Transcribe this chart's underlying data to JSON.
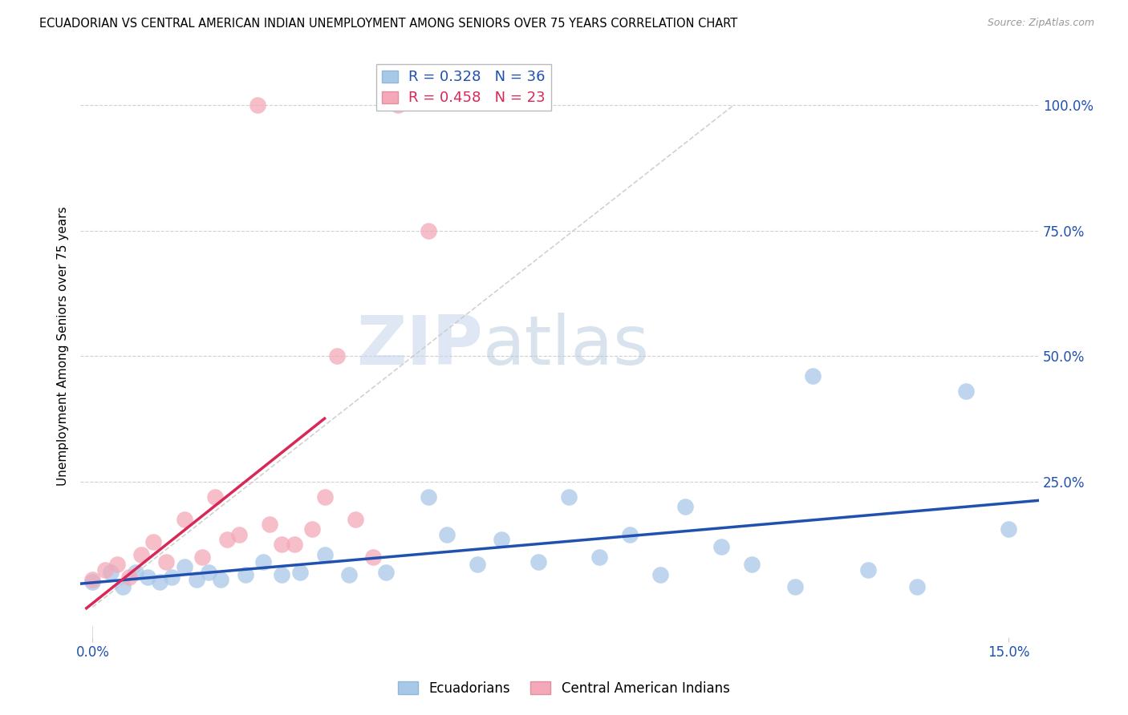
{
  "title": "ECUADORIAN VS CENTRAL AMERICAN INDIAN UNEMPLOYMENT AMONG SENIORS OVER 75 YEARS CORRELATION CHART",
  "source": "Source: ZipAtlas.com",
  "ylabel": "Unemployment Among Seniors over 75 years",
  "right_yticks": [
    "100.0%",
    "75.0%",
    "50.0%",
    "25.0%"
  ],
  "right_ytick_vals": [
    1.0,
    0.75,
    0.5,
    0.25
  ],
  "xmin": -0.002,
  "xmax": 0.155,
  "ymin": -0.06,
  "ymax": 1.1,
  "blue_color": "#a8c8e8",
  "pink_color": "#f4a8b8",
  "blue_line_color": "#2050b0",
  "pink_line_color": "#d82858",
  "diag_line_color": "#cccccc",
  "watermark_zip": "ZIP",
  "watermark_atlas": "atlas",
  "blue_R": 0.328,
  "blue_N": 36,
  "pink_R": 0.458,
  "pink_N": 23,
  "blue_points_x": [
    0.0,
    0.003,
    0.005,
    0.007,
    0.009,
    0.011,
    0.013,
    0.015,
    0.017,
    0.019,
    0.021,
    0.025,
    0.028,
    0.031,
    0.034,
    0.038,
    0.042,
    0.048,
    0.055,
    0.058,
    0.063,
    0.067,
    0.073,
    0.078,
    0.083,
    0.088,
    0.093,
    0.097,
    0.103,
    0.108,
    0.115,
    0.118,
    0.127,
    0.135,
    0.143,
    0.15
  ],
  "blue_points_y": [
    0.05,
    0.07,
    0.04,
    0.07,
    0.06,
    0.05,
    0.06,
    0.08,
    0.055,
    0.07,
    0.055,
    0.065,
    0.09,
    0.065,
    0.07,
    0.105,
    0.065,
    0.07,
    0.22,
    0.145,
    0.085,
    0.135,
    0.09,
    0.22,
    0.1,
    0.145,
    0.065,
    0.2,
    0.12,
    0.085,
    0.04,
    0.46,
    0.075,
    0.04,
    0.43,
    0.155
  ],
  "pink_points_x": [
    0.0,
    0.002,
    0.004,
    0.006,
    0.008,
    0.01,
    0.012,
    0.015,
    0.018,
    0.02,
    0.022,
    0.024,
    0.027,
    0.029,
    0.031,
    0.033,
    0.036,
    0.038,
    0.04,
    0.043,
    0.046,
    0.05,
    0.055
  ],
  "pink_points_y": [
    0.055,
    0.075,
    0.085,
    0.06,
    0.105,
    0.13,
    0.09,
    0.175,
    0.1,
    0.22,
    0.135,
    0.145,
    1.0,
    0.165,
    0.125,
    0.125,
    0.155,
    0.22,
    0.5,
    0.175,
    0.1,
    1.0,
    0.75
  ],
  "xtick_positions": [
    0.0,
    0.15
  ],
  "xtick_labels": [
    "0.0%",
    "15.0%"
  ]
}
